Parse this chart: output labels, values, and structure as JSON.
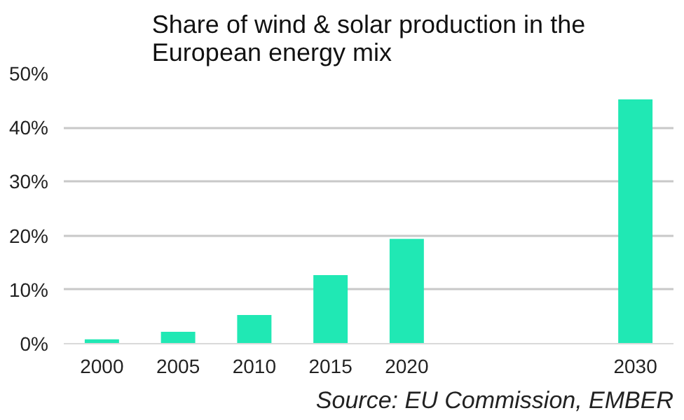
{
  "chart_data": {
    "type": "bar",
    "title": "Share of wind & solar production in the European energy mix",
    "categories": [
      "2000",
      "2005",
      "2010",
      "2015",
      "2020",
      null,
      null,
      "2030"
    ],
    "values": [
      0.8,
      2.2,
      5.3,
      12.7,
      19.4,
      null,
      null,
      45.2
    ],
    "color": "#20e8b4",
    "ylim": [
      0,
      50
    ],
    "yticks": [
      {
        "value": 0,
        "label": "0%"
      },
      {
        "value": 10,
        "label": "10%"
      },
      {
        "value": 20,
        "label": "20%"
      },
      {
        "value": 30,
        "label": "30%"
      },
      {
        "value": 40,
        "label": "40%"
      },
      {
        "value": 50,
        "label": "50%"
      }
    ],
    "grid": "y",
    "annotations": [
      "Source: EU Commission, EMBER"
    ]
  }
}
